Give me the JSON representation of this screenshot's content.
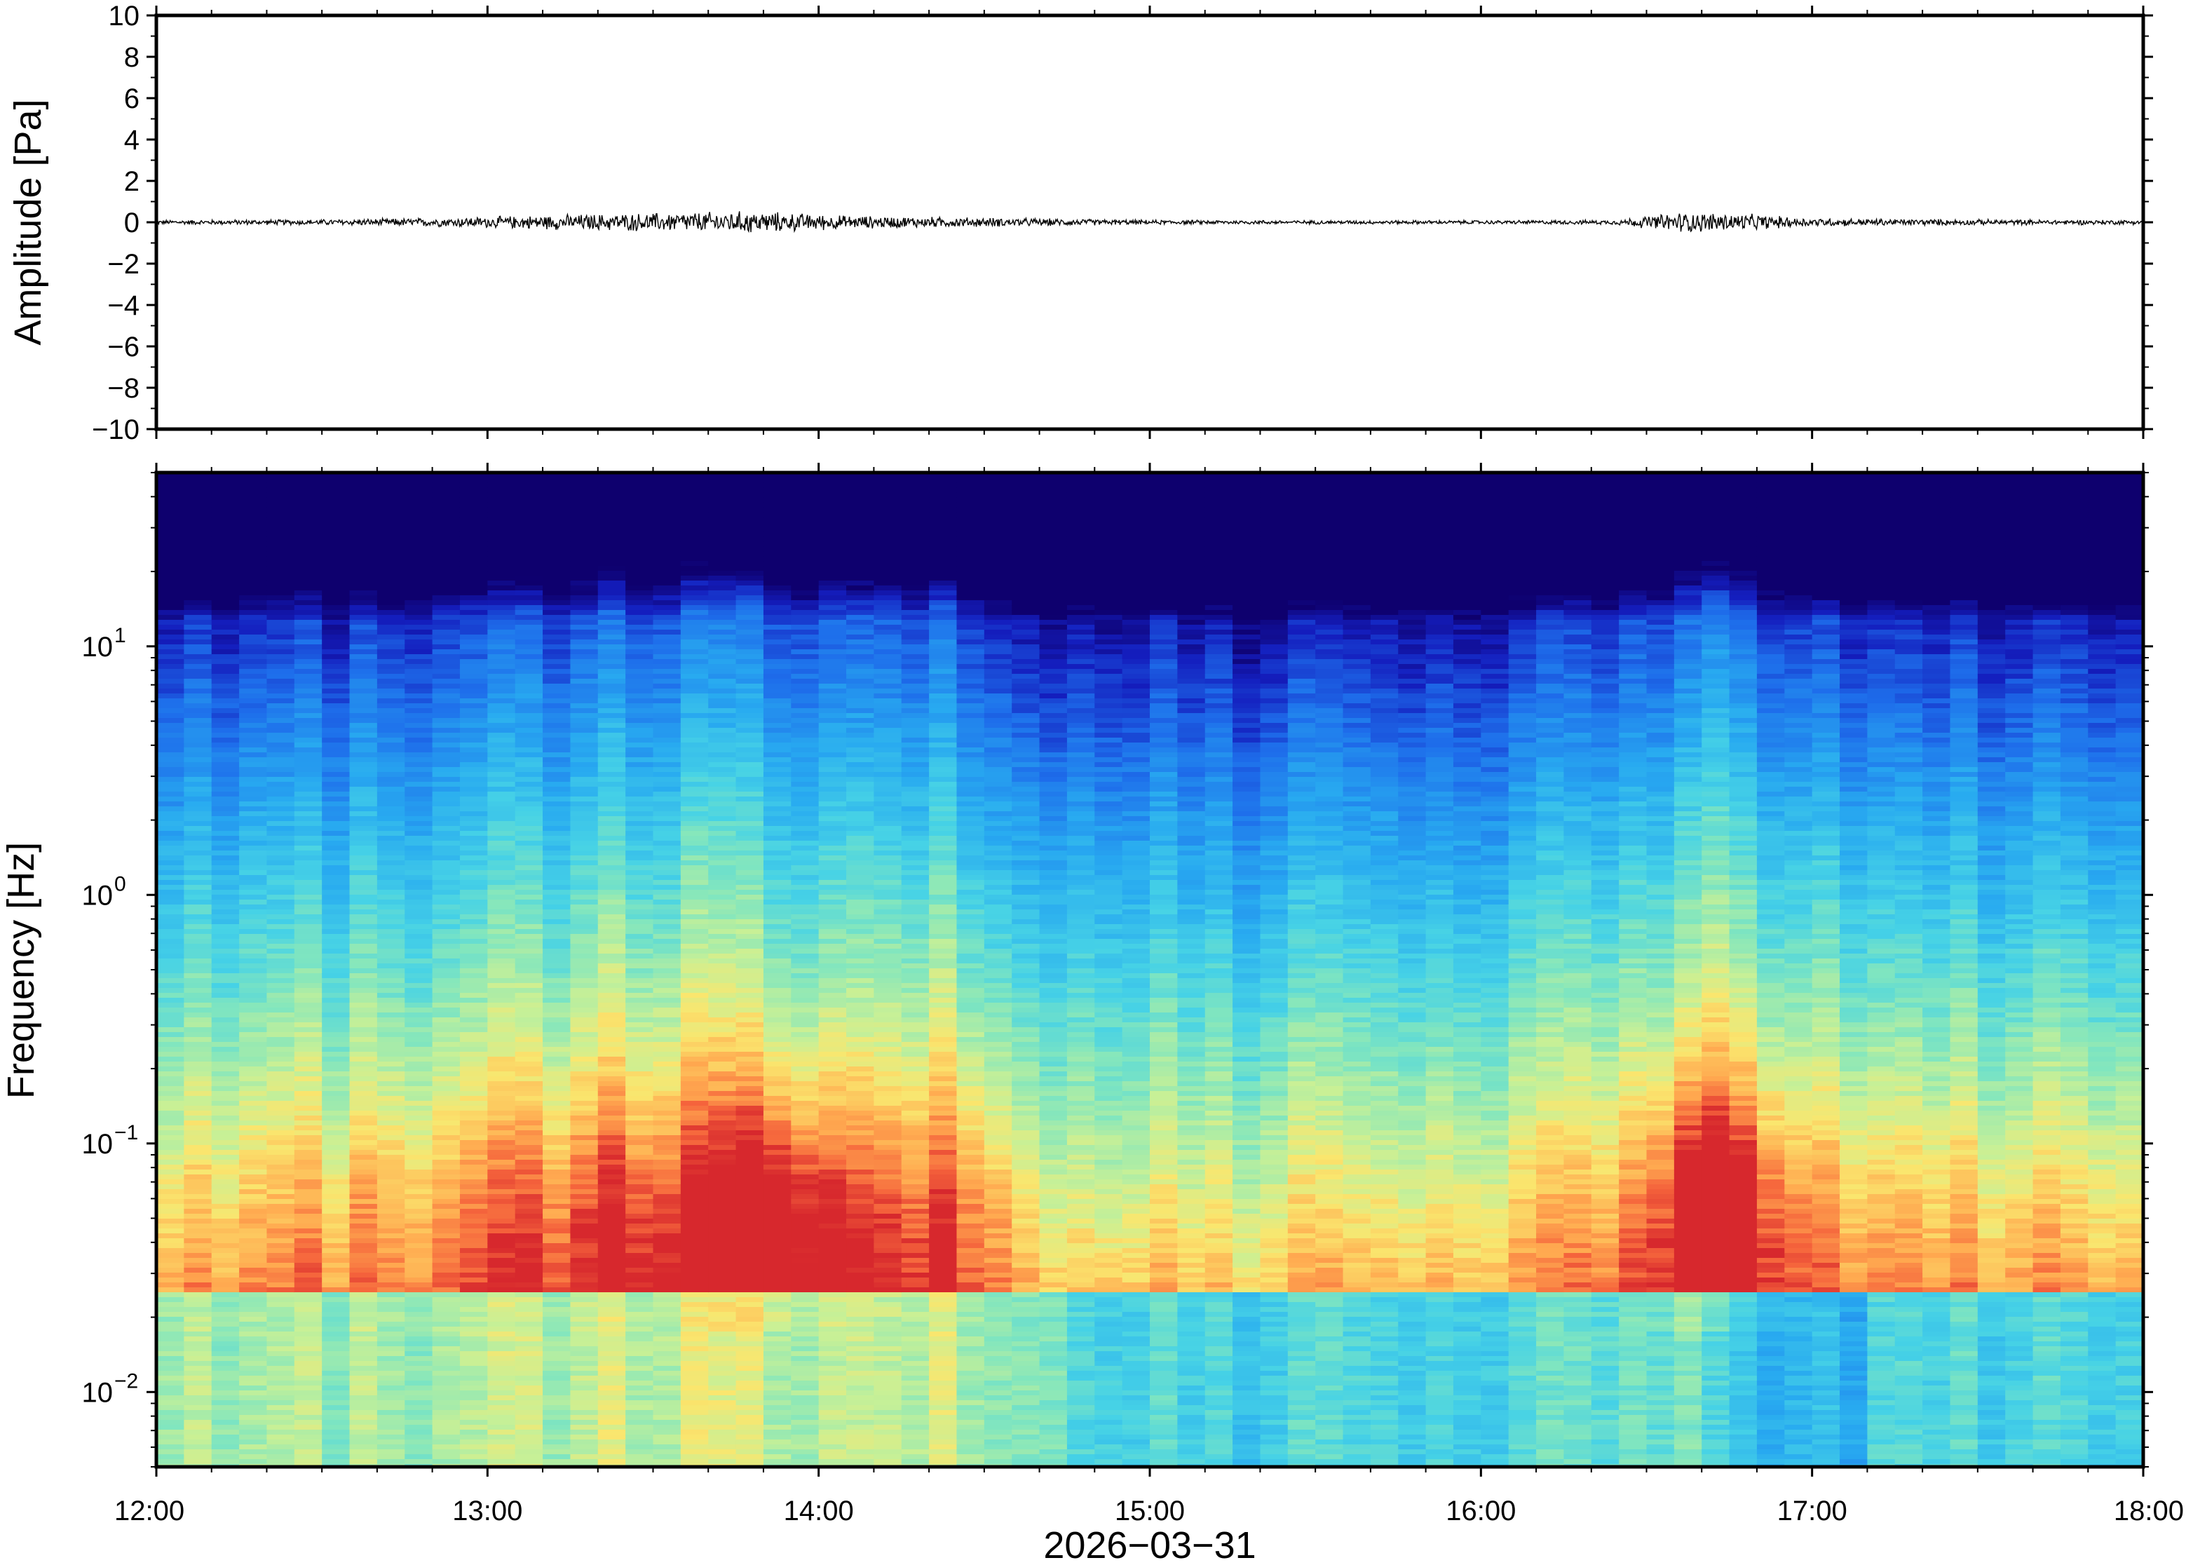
{
  "chart_data": [
    {
      "type": "line",
      "panel": "waveform",
      "ylabel": "Amplitude [Pa]",
      "ylim": [
        -10,
        10
      ],
      "yticks": [
        10,
        8,
        6,
        4,
        2,
        0,
        -2,
        -4,
        -6,
        -8,
        -10
      ],
      "ytick_labels": [
        "10",
        "8",
        "6",
        "4",
        "2",
        "0",
        "−2",
        "−4",
        "−6",
        "−8",
        "−10"
      ],
      "xlim": [
        "12:00",
        "18:00"
      ],
      "series": [
        {
          "color": "#000000",
          "baseline": 0,
          "envelope": {
            "time_hours": [
              12.0,
              12.5,
              12.9,
              13.2,
              13.5,
              13.8,
              14.1,
              14.5,
              15.0,
              15.5,
              16.0,
              16.4,
              16.6,
              16.75,
              17.0,
              17.5,
              18.0
            ],
            "amplitude_pa": [
              0.12,
              0.15,
              0.25,
              0.4,
              0.5,
              0.6,
              0.35,
              0.25,
              0.12,
              0.1,
              0.1,
              0.12,
              0.55,
              0.5,
              0.22,
              0.15,
              0.12
            ]
          }
        }
      ]
    },
    {
      "type": "heatmap",
      "panel": "spectrogram",
      "ylabel": "Frequency [Hz]",
      "xlabel": "2026−03−31",
      "yscale": "log",
      "ylim": [
        0.005,
        50
      ],
      "yticks": [
        {
          "base": "10",
          "exp": "1"
        },
        {
          "base": "10",
          "exp": "0"
        },
        {
          "base": "10",
          "exp": "−1"
        },
        {
          "base": "10",
          "exp": "−2"
        }
      ],
      "xticks": [
        "12:00",
        "13:00",
        "14:00",
        "15:00",
        "16:00",
        "17:00",
        "18:00"
      ],
      "colormap": "rainbow (blue = low power, red = high power)",
      "activity": {
        "time_hours": [
          12.0,
          12.3,
          12.6,
          13.0,
          13.5,
          14.0,
          14.5,
          14.75,
          15.0,
          15.5,
          16.0,
          16.5,
          16.65,
          16.8,
          17.0,
          17.5,
          18.0
        ],
        "relative_level": [
          0.35,
          0.5,
          0.55,
          0.7,
          0.9,
          0.85,
          0.75,
          0.25,
          0.3,
          0.35,
          0.4,
          0.55,
          0.95,
          0.85,
          0.6,
          0.5,
          0.45
        ]
      },
      "hotspots_hours": [
        13.85,
        16.7
      ]
    }
  ]
}
